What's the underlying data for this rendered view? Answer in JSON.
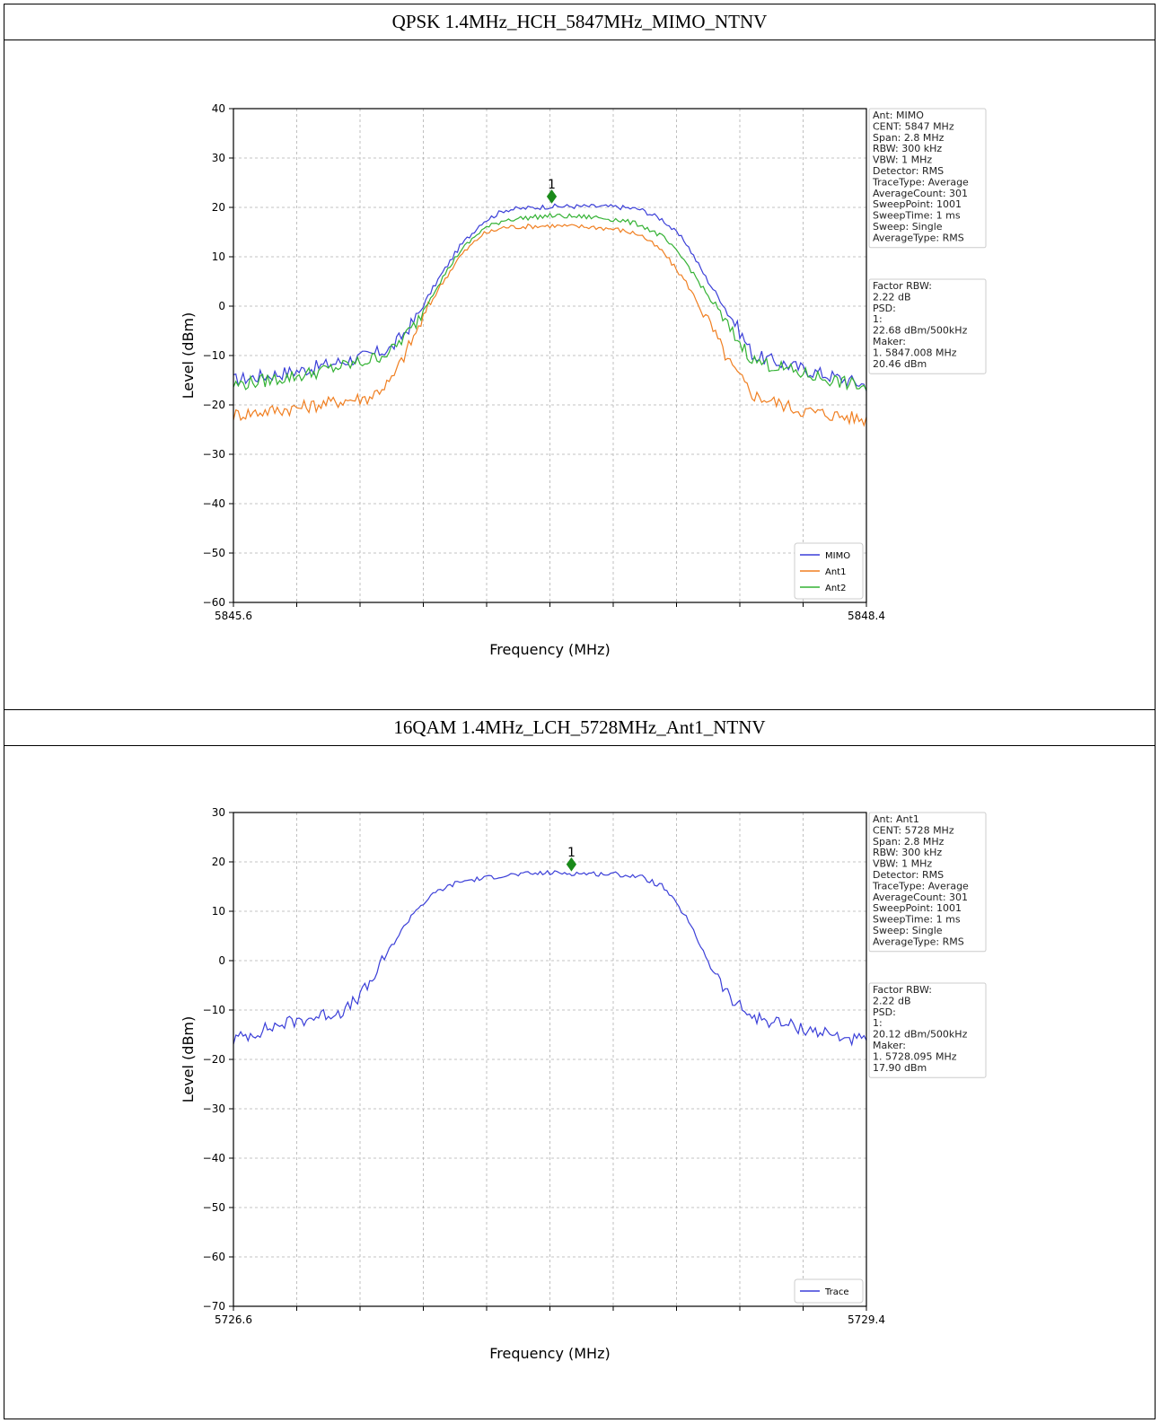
{
  "sections": [
    {
      "title": "QPSK 1.4MHz_HCH_5847MHz_MIMO_NTNV",
      "chart_data": {
        "type": "line",
        "xlabel": "Frequency (MHz)",
        "ylabel": "Level (dBm)",
        "xlim": [
          5845.6,
          5848.4
        ],
        "ylim": [
          -60,
          40
        ],
        "yticks": [
          -60,
          -50,
          -40,
          -30,
          -20,
          -10,
          0,
          10,
          20,
          30,
          40
        ],
        "xticks_minor": [
          5845.88,
          5846.16,
          5846.44,
          5846.72,
          5847.0,
          5847.28,
          5847.56,
          5847.84,
          5848.12
        ],
        "x_tick_labels": [
          "5845.6",
          "5848.4"
        ],
        "grid": true,
        "legend_position": "bottom-right",
        "series": [
          {
            "name": "MIMO",
            "color": "#3b3fd8",
            "x": [
              5845.6,
              5845.9,
              5846.1,
              5846.2,
              5846.3,
              5846.4,
              5846.5,
              5846.6,
              5846.7,
              5846.8,
              5847.0,
              5847.2,
              5847.3,
              5847.4,
              5847.5,
              5847.6,
              5847.7,
              5847.8,
              5847.9,
              5848.1,
              5848.4
            ],
            "y": [
              -15,
              -13,
              -11,
              -10,
              -8.5,
              -3,
              5,
              12,
              17,
              19.5,
              20.2,
              20.2,
              20.1,
              19.6,
              17.5,
              13,
              5,
              -2,
              -10,
              -12.5,
              -16
            ]
          },
          {
            "name": "Ant1",
            "color": "#f07f21",
            "x": [
              5845.6,
              5845.9,
              5846.1,
              5846.2,
              5846.3,
              5846.4,
              5846.5,
              5846.6,
              5846.7,
              5846.8,
              5847.0,
              5847.2,
              5847.3,
              5847.4,
              5847.5,
              5847.6,
              5847.7,
              5847.8,
              5847.9,
              5848.1,
              5848.4
            ],
            "y": [
              -22,
              -20.5,
              -19,
              -18.5,
              -15,
              -6,
              3,
              10,
              14.5,
              16,
              16.3,
              16,
              15.5,
              14.5,
              11,
              5,
              -3,
              -12,
              -18,
              -21,
              -23
            ]
          },
          {
            "name": "Ant2",
            "color": "#34b234",
            "x": [
              5845.6,
              5845.9,
              5846.1,
              5846.2,
              5846.3,
              5846.4,
              5846.5,
              5846.6,
              5846.7,
              5846.8,
              5847.0,
              5847.2,
              5847.3,
              5847.4,
              5847.5,
              5847.6,
              5847.7,
              5847.8,
              5847.9,
              5848.1,
              5848.4
            ],
            "y": [
              -16,
              -14,
              -12,
              -11,
              -9,
              -4,
              4,
              11,
              15.5,
              17.5,
              18.3,
              18,
              17.5,
              16.5,
              14,
              9,
              2,
              -5,
              -11,
              -13.5,
              -16.5
            ]
          }
        ],
        "marker": {
          "label": "1",
          "x": 5847.008,
          "y": 22.2,
          "color": "#1a8a1a"
        },
        "info_box_1": [
          "Ant: MIMO",
          "CENT: 5847 MHz",
          "Span: 2.8 MHz",
          "RBW: 300 kHz",
          "VBW: 1 MHz",
          "Detector: RMS",
          "TraceType: Average",
          "AverageCount: 301",
          "SweepPoint: 1001",
          "SweepTime: 1 ms",
          "Sweep: Single",
          "AverageType: RMS"
        ],
        "info_box_2": [
          "Factor RBW:",
          " 2.22 dB",
          "PSD:",
          "1:",
          " 22.68 dBm/500kHz",
          "Maker:",
          "1. 5847.008 MHz",
          "    20.46 dBm"
        ]
      }
    },
    {
      "title": "16QAM 1.4MHz_LCH_5728MHz_Ant1_NTNV",
      "chart_data": {
        "type": "line",
        "xlabel": "Frequency (MHz)",
        "ylabel": "Level (dBm)",
        "xlim": [
          5726.6,
          5729.4
        ],
        "ylim": [
          -70,
          30
        ],
        "yticks": [
          -70,
          -60,
          -50,
          -40,
          -30,
          -20,
          -10,
          0,
          10,
          20,
          30
        ],
        "xticks_minor": [
          5726.88,
          5727.16,
          5727.44,
          5727.72,
          5728.0,
          5728.28,
          5728.56,
          5728.84,
          5729.12
        ],
        "x_tick_labels": [
          "5726.6",
          "5729.4"
        ],
        "grid": true,
        "legend_position": "bottom-right",
        "series": [
          {
            "name": "Trace",
            "color": "#3b3fd8",
            "x": [
              5726.6,
              5726.8,
              5727.0,
              5727.1,
              5727.2,
              5727.3,
              5727.4,
              5727.5,
              5727.6,
              5727.8,
              5728.0,
              5728.2,
              5728.3,
              5728.4,
              5728.5,
              5728.6,
              5728.7,
              5728.8,
              5728.9,
              5729.1,
              5729.4
            ],
            "y": [
              -16,
              -13,
              -11,
              -10,
              -5,
              3,
              10,
              14,
              16,
              17.3,
              17.8,
              17.6,
              17.5,
              17,
              15,
              9,
              0,
              -8,
              -11.5,
              -13.5,
              -16.5
            ]
          }
        ],
        "marker": {
          "label": "1",
          "x": 5728.095,
          "y": 19.5,
          "color": "#1a8a1a"
        },
        "info_box_1": [
          "Ant: Ant1",
          "CENT: 5728 MHz",
          "Span: 2.8 MHz",
          "RBW: 300 kHz",
          "VBW: 1 MHz",
          "Detector: RMS",
          "TraceType: Average",
          "AverageCount: 301",
          "SweepPoint: 1001",
          "SweepTime: 1 ms",
          "Sweep: Single",
          "AverageType: RMS"
        ],
        "info_box_2": [
          "Factor RBW:",
          " 2.22 dB",
          "PSD:",
          "1:",
          " 20.12 dBm/500kHz",
          "Maker:",
          "1. 5728.095 MHz",
          "    17.90 dBm"
        ]
      }
    }
  ]
}
